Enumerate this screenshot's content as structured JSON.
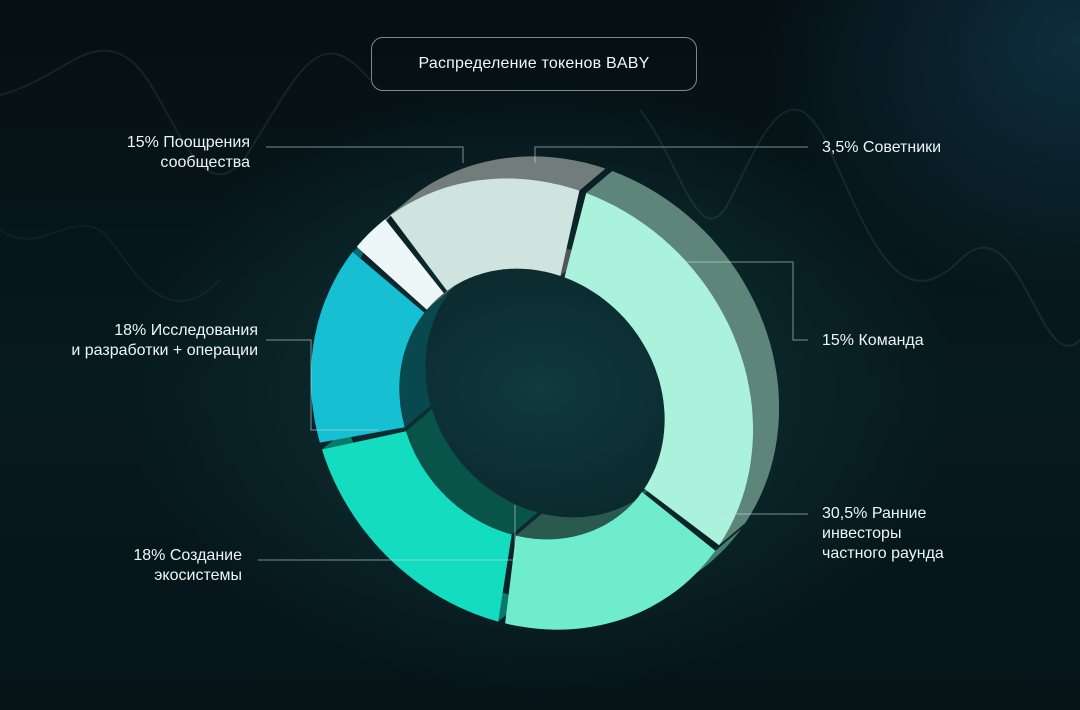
{
  "chart_data": {
    "type": "pie",
    "variant": "3d-donut",
    "title": "Распределение токенов BABY",
    "slices": [
      {
        "label": "3,5% Советники",
        "value": 3.5,
        "color": "#eef7f7"
      },
      {
        "label": "15% Команда",
        "value": 15,
        "color": "#cfe3df"
      },
      {
        "label": "30,5% Ранние инвесторы частного раунда",
        "value": 30.5,
        "color": "#aaf2dc"
      },
      {
        "label": "18% Создание экосистемы",
        "value": 18,
        "color": "#6feccd"
      },
      {
        "label": "18% Исследования и разработки + операции",
        "value": 18,
        "color": "#14dcc0"
      },
      {
        "label": "15% Поощрения сообщества",
        "value": 15,
        "color": "#16bfd2"
      }
    ]
  },
  "labels": {
    "advisors": "3,5% Советники",
    "team": "15% Команда",
    "investors_l1": "30,5% Ранние",
    "investors_l2": "инвесторы",
    "investors_l3": "частного раунда",
    "ecosystem_l1": "18% Создание",
    "ecosystem_l2": "экосистемы",
    "research_l1": "18% Исследования",
    "research_l2": "и разработки + операции",
    "community_l1": "15% Поощрения",
    "community_l2": "сообщества"
  }
}
